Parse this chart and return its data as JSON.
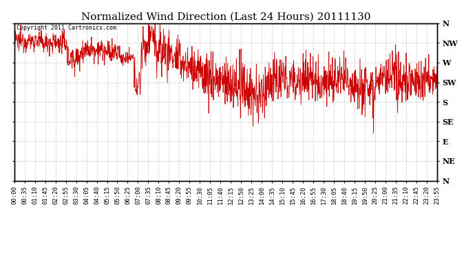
{
  "title": "Normalized Wind Direction (Last 24 Hours) 20111130",
  "copyright_text": "Copyright 2011 Cartronics.com",
  "line_color": "#cc0000",
  "background_color": "#ffffff",
  "grid_color": "#bbbbbb",
  "y_labels": [
    "N",
    "NW",
    "W",
    "SW",
    "S",
    "SE",
    "E",
    "NE",
    "N"
  ],
  "y_values": [
    8,
    7,
    6,
    5,
    4,
    3,
    2,
    1,
    0
  ],
  "ylim": [
    0,
    8
  ],
  "x_tick_labels": [
    "00:00",
    "00:35",
    "01:10",
    "01:45",
    "02:20",
    "02:55",
    "03:30",
    "04:05",
    "04:40",
    "05:15",
    "05:50",
    "06:25",
    "07:00",
    "07:35",
    "08:10",
    "08:45",
    "09:20",
    "09:55",
    "10:30",
    "11:05",
    "11:40",
    "12:15",
    "12:50",
    "13:25",
    "14:00",
    "14:35",
    "15:10",
    "15:45",
    "16:20",
    "16:55",
    "17:30",
    "18:05",
    "18:40",
    "19:15",
    "19:50",
    "20:25",
    "21:00",
    "21:35",
    "22:10",
    "22:45",
    "23:20",
    "23:55"
  ],
  "title_fontsize": 11,
  "tick_fontsize": 6.5,
  "ylabel_fontsize": 8
}
